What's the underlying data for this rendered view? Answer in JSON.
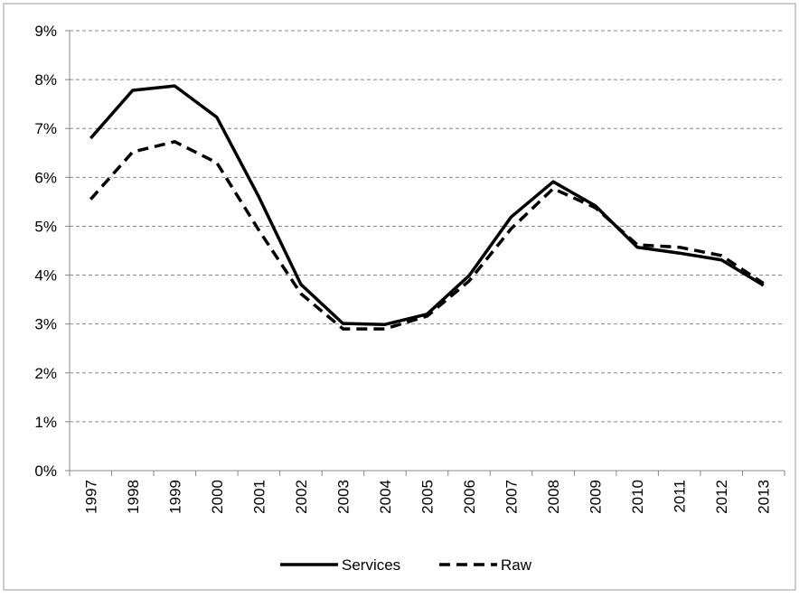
{
  "chart_data": {
    "type": "line",
    "categories": [
      "1997",
      "1998",
      "1999",
      "2000",
      "2001",
      "2002",
      "2003",
      "2004",
      "2005",
      "2006",
      "2007",
      "2008",
      "2009",
      "2010",
      "2011",
      "2012",
      "2013"
    ],
    "series": [
      {
        "name": "Services",
        "color": "#000000",
        "dash": "solid",
        "values": [
          6.8,
          7.78,
          7.87,
          7.23,
          5.6,
          3.81,
          3.01,
          2.99,
          3.2,
          3.99,
          5.19,
          5.91,
          5.42,
          4.57,
          4.45,
          4.31,
          3.79
        ]
      },
      {
        "name": "Raw",
        "color": "#000000",
        "dash": "dashed",
        "values": [
          5.55,
          6.52,
          6.73,
          6.3,
          4.92,
          3.62,
          2.9,
          2.9,
          3.16,
          3.88,
          4.95,
          5.77,
          5.38,
          4.62,
          4.57,
          4.4,
          3.83
        ]
      }
    ],
    "ylim": [
      0,
      9
    ],
    "yticks": [
      {
        "value": 0,
        "label": "0%"
      },
      {
        "value": 1,
        "label": "1%"
      },
      {
        "value": 2,
        "label": "2%"
      },
      {
        "value": 3,
        "label": "3%"
      },
      {
        "value": 4,
        "label": "4%"
      },
      {
        "value": 5,
        "label": "5%"
      },
      {
        "value": 6,
        "label": "6%"
      },
      {
        "value": 7,
        "label": "7%"
      },
      {
        "value": 8,
        "label": "8%"
      },
      {
        "value": 9,
        "label": "9%"
      }
    ],
    "grid": true,
    "legend": "bottom"
  }
}
